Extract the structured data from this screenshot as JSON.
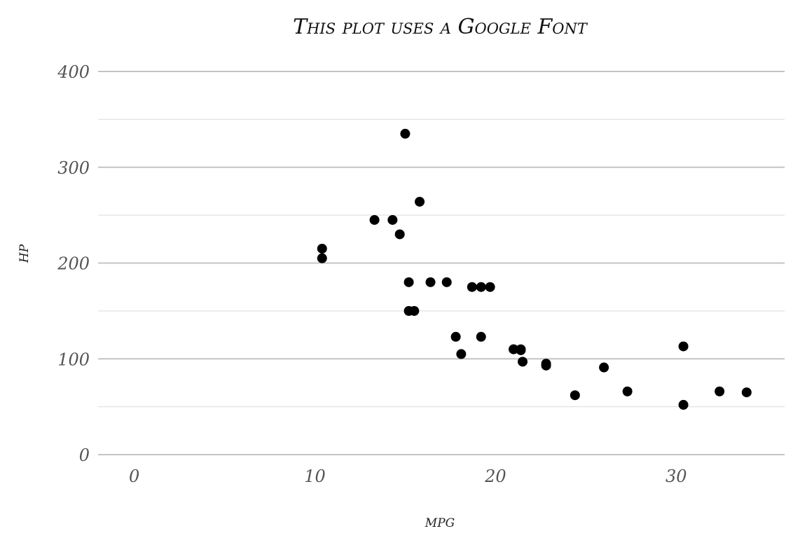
{
  "chart_data": {
    "type": "scatter",
    "title": "This plot uses a Google Font",
    "xlabel": "mpg",
    "ylabel": "hp",
    "xlim": [
      -2,
      36
    ],
    "ylim": [
      0,
      400
    ],
    "x_ticks": [
      0,
      10,
      20,
      30
    ],
    "x_tick_labels": [
      "0",
      "10",
      "20",
      "30"
    ],
    "y_ticks": [
      0,
      100,
      200,
      300,
      400
    ],
    "y_tick_labels": [
      "0",
      "100",
      "200",
      "300",
      "400"
    ],
    "y_minor_ticks": [
      50,
      150,
      250,
      350
    ],
    "grid": true,
    "point_color": "#000000",
    "points": [
      {
        "x": 21.0,
        "y": 110
      },
      {
        "x": 21.0,
        "y": 110
      },
      {
        "x": 22.8,
        "y": 93
      },
      {
        "x": 21.4,
        "y": 110
      },
      {
        "x": 18.7,
        "y": 175
      },
      {
        "x": 18.1,
        "y": 105
      },
      {
        "x": 14.3,
        "y": 245
      },
      {
        "x": 24.4,
        "y": 62
      },
      {
        "x": 22.8,
        "y": 95
      },
      {
        "x": 19.2,
        "y": 123
      },
      {
        "x": 17.8,
        "y": 123
      },
      {
        "x": 16.4,
        "y": 180
      },
      {
        "x": 17.3,
        "y": 180
      },
      {
        "x": 15.2,
        "y": 180
      },
      {
        "x": 10.4,
        "y": 205
      },
      {
        "x": 10.4,
        "y": 215
      },
      {
        "x": 14.7,
        "y": 230
      },
      {
        "x": 32.4,
        "y": 66
      },
      {
        "x": 30.4,
        "y": 52
      },
      {
        "x": 33.9,
        "y": 65
      },
      {
        "x": 21.5,
        "y": 97
      },
      {
        "x": 15.5,
        "y": 150
      },
      {
        "x": 15.2,
        "y": 150
      },
      {
        "x": 13.3,
        "y": 245
      },
      {
        "x": 19.2,
        "y": 175
      },
      {
        "x": 27.3,
        "y": 66
      },
      {
        "x": 26.0,
        "y": 91
      },
      {
        "x": 30.4,
        "y": 113
      },
      {
        "x": 15.8,
        "y": 264
      },
      {
        "x": 19.7,
        "y": 175
      },
      {
        "x": 15.0,
        "y": 335
      },
      {
        "x": 21.4,
        "y": 109
      }
    ]
  }
}
